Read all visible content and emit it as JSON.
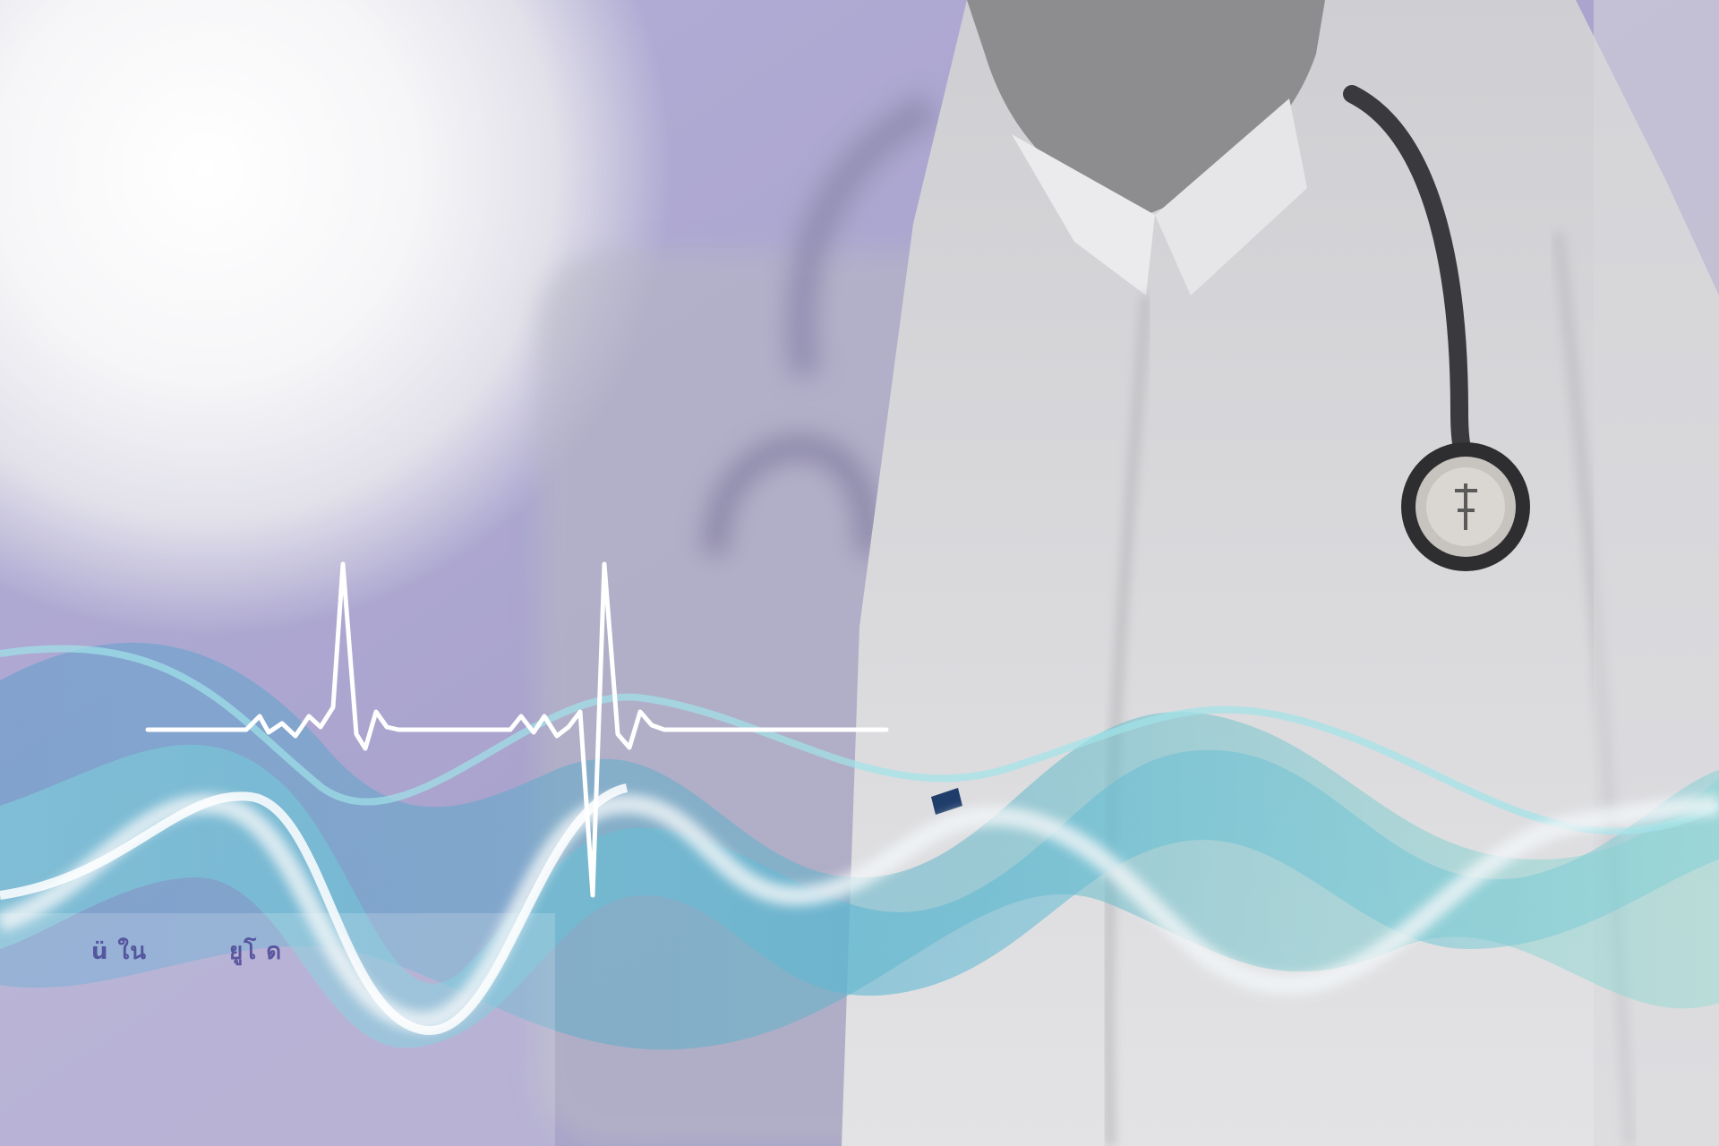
{
  "image": {
    "subject": "doctor-with-stethoscope-and-heartbeat-wave",
    "colors": {
      "background_lavender": "#aaa5cf",
      "glow_white": "#f4f4f6",
      "coat_gray": "#d6d6d8",
      "stethoscope_dark": "#3c3c40",
      "wave_teal": "#5fc2d0",
      "wave_blue": "#6aa6cc",
      "heartbeat_white": "#ffffff",
      "small_text": "#4b4796"
    }
  },
  "paper_marks": {
    "left": "ü ใน",
    "right": "ยูโ ด"
  }
}
